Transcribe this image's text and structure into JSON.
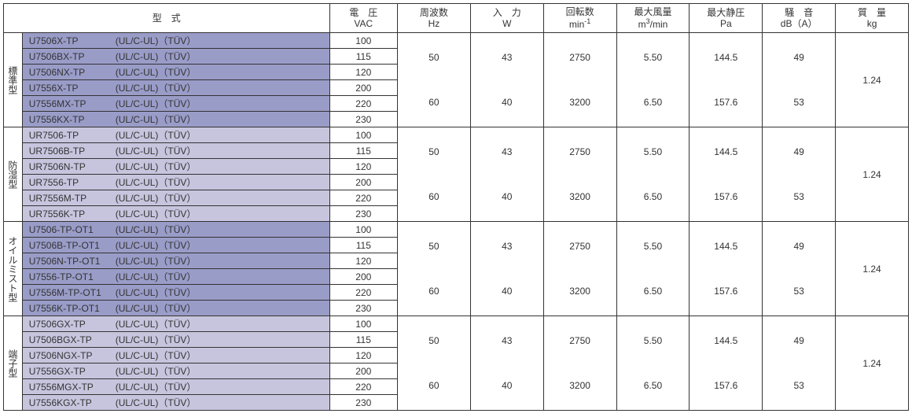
{
  "columns": {
    "model": {
      "label": "型　式",
      "unit": ""
    },
    "voltage": {
      "label": "電　圧",
      "unit": "VAC"
    },
    "frequency": {
      "label": "周波数",
      "unit": "Hz"
    },
    "input": {
      "label": "入　力",
      "unit": "W"
    },
    "speed": {
      "label": "回転数",
      "unit": "min<sup>-1</sup>"
    },
    "airflow": {
      "label": "最大風量",
      "unit": "m<sup>3</sup>/min"
    },
    "pressure": {
      "label": "最大静圧",
      "unit": "Pa"
    },
    "noise": {
      "label": "騒　音",
      "unit": "dB（A）"
    },
    "mass": {
      "label": "質　量",
      "unit": "kg"
    }
  },
  "colors": {
    "shade0": "#9a9cc8",
    "shade1": "#c7c5de",
    "border": "#333333",
    "text": "#333333",
    "bg": "#ffffff"
  },
  "colwidths": {
    "grp": 22,
    "model": 362,
    "volt": 80,
    "freq": 86,
    "input": 86,
    "speed": 86,
    "airflow": 86,
    "pressure": 86,
    "noise": 86,
    "mass": 86
  },
  "groups": [
    {
      "name": "標準型",
      "rows": [
        {
          "pn": "U7506X-TP",
          "cert": "(UL/C-UL)（TÜV）",
          "volt": "100"
        },
        {
          "pn": "U7506BX-TP",
          "cert": "(UL/C-UL)（TÜV）",
          "volt": "115"
        },
        {
          "pn": "U7506NX-TP",
          "cert": "(UL/C-UL)（TÜV）",
          "volt": "120"
        },
        {
          "pn": "U7556X-TP",
          "cert": "(UL/C-UL)（TÜV）",
          "volt": "200"
        },
        {
          "pn": "U7556MX-TP",
          "cert": "(UL/C-UL)（TÜV）",
          "volt": "220"
        },
        {
          "pn": "U7556KX-TP",
          "cert": "(UL/C-UL)（TÜV）",
          "volt": "230"
        }
      ],
      "freq": [
        "50",
        "60"
      ],
      "input": [
        "43",
        "40"
      ],
      "speed": [
        "2750",
        "3200"
      ],
      "airflow": [
        "5.50",
        "6.50"
      ],
      "pressure": [
        "144.5",
        "157.6"
      ],
      "noise": [
        "49",
        "53"
      ],
      "mass": "1.24"
    },
    {
      "name": "防湿型",
      "rows": [
        {
          "pn": "UR7506-TP",
          "cert": "(UL/C-UL)（TÜV）",
          "volt": "100"
        },
        {
          "pn": "UR7506B-TP",
          "cert": "(UL/C-UL)（TÜV）",
          "volt": "115"
        },
        {
          "pn": "UR7506N-TP",
          "cert": "(UL/C-UL)（TÜV）",
          "volt": "120"
        },
        {
          "pn": "UR7556-TP",
          "cert": "(UL/C-UL)（TÜV）",
          "volt": "200"
        },
        {
          "pn": "UR7556M-TP",
          "cert": "(UL/C-UL)（TÜV）",
          "volt": "220"
        },
        {
          "pn": "UR7556K-TP",
          "cert": "(UL/C-UL)（TÜV）",
          "volt": "230"
        }
      ],
      "freq": [
        "50",
        "60"
      ],
      "input": [
        "43",
        "40"
      ],
      "speed": [
        "2750",
        "3200"
      ],
      "airflow": [
        "5.50",
        "6.50"
      ],
      "pressure": [
        "144.5",
        "157.6"
      ],
      "noise": [
        "49",
        "53"
      ],
      "mass": "1.24"
    },
    {
      "name": "オイルミスト型",
      "rows": [
        {
          "pn": "U7506-TP-OT1",
          "cert": "(UL/C-UL)（TÜV）",
          "volt": "100"
        },
        {
          "pn": "U7506B-TP-OT1",
          "cert": "(UL/C-UL)（TÜV）",
          "volt": "115"
        },
        {
          "pn": "U7506N-TP-OT1",
          "cert": "(UL/C-UL)（TÜV）",
          "volt": "120"
        },
        {
          "pn": "U7556-TP-OT1",
          "cert": "(UL/C-UL)（TÜV）",
          "volt": "200"
        },
        {
          "pn": "U7556M-TP-OT1",
          "cert": "(UL/C-UL)（TÜV）",
          "volt": "220"
        },
        {
          "pn": "U7556K-TP-OT1",
          "cert": "(UL/C-UL)（TÜV）",
          "volt": "230"
        }
      ],
      "freq": [
        "50",
        "60"
      ],
      "input": [
        "43",
        "40"
      ],
      "speed": [
        "2750",
        "3200"
      ],
      "airflow": [
        "5.50",
        "6.50"
      ],
      "pressure": [
        "144.5",
        "157.6"
      ],
      "noise": [
        "49",
        "53"
      ],
      "mass": "1.24"
    },
    {
      "name": "端子型",
      "rows": [
        {
          "pn": "U7506GX-TP",
          "cert": "(UL/C-UL)（TÜV）",
          "volt": "100"
        },
        {
          "pn": "U7506BGX-TP",
          "cert": "(UL/C-UL)（TÜV）",
          "volt": "115"
        },
        {
          "pn": "U7506NGX-TP",
          "cert": "(UL/C-UL)（TÜV）",
          "volt": "120"
        },
        {
          "pn": "U7556GX-TP",
          "cert": "(UL/C-UL)（TÜV）",
          "volt": "200"
        },
        {
          "pn": "U7556MGX-TP",
          "cert": "(UL/C-UL)（TÜV）",
          "volt": "220"
        },
        {
          "pn": "U7556KGX-TP",
          "cert": "(UL/C-UL)（TÜV）",
          "volt": "230"
        }
      ],
      "freq": [
        "50",
        "60"
      ],
      "input": [
        "43",
        "40"
      ],
      "speed": [
        "2750",
        "3200"
      ],
      "airflow": [
        "5.50",
        "6.50"
      ],
      "pressure": [
        "144.5",
        "157.6"
      ],
      "noise": [
        "49",
        "53"
      ],
      "mass": "1.24"
    }
  ]
}
